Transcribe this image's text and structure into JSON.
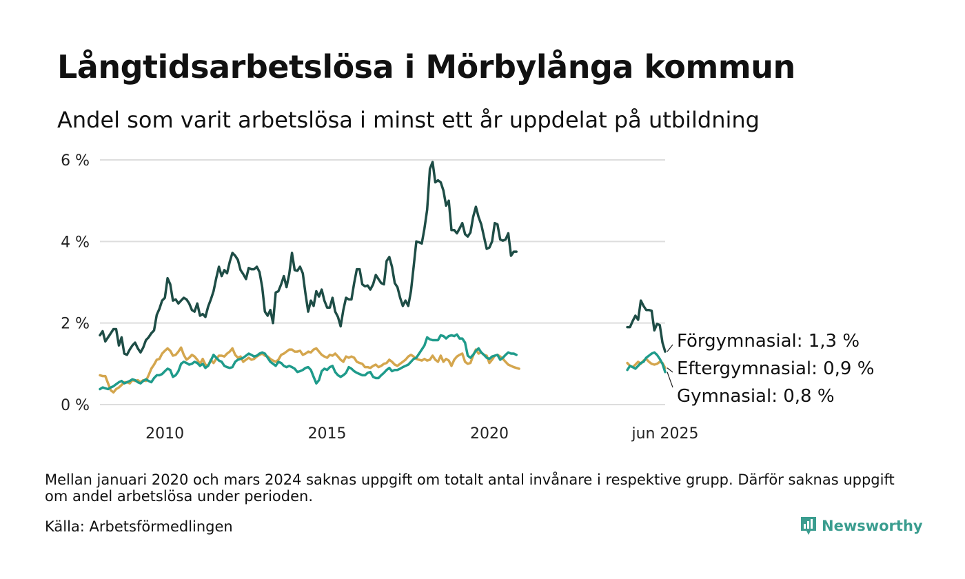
{
  "header": {
    "title": "Långtidsarbetslösa i Mörbylånga kommun",
    "subtitle": "Andel som varit arbetslösa i minst ett år uppdelat på utbildning"
  },
  "footer": {
    "note": "Mellan januari 2020 och mars 2024 saknas uppgift om totalt antal invånare i respektive grupp. Därför saknas uppgift om andel arbetslösa under perioden.",
    "source": "Källa: Arbetsförmedlingen",
    "brand": "Newsworthy"
  },
  "colors": {
    "forgymnasial": "#1e4d46",
    "eftergymnasial": "#d4a64e",
    "gymnasial": "#1f9b8b",
    "grid": "#dddddd",
    "brand": "#3a9d8f"
  },
  "icons": {
    "brand_logo": "bar-chart-speech-icon"
  },
  "chart_data": {
    "type": "line",
    "title": "Långtidsarbetslösa i Mörbylånga kommun",
    "subtitle": "Andel som varit arbetslösa i minst ett år uppdelat på utbildning",
    "xlabel": "",
    "ylabel": "",
    "xlim": [
      "2008-01",
      "2025-06"
    ],
    "ylim": [
      0,
      6
    ],
    "yticks": [
      0,
      2,
      4,
      6
    ],
    "ytick_labels": [
      "0 %",
      "2 %",
      "4 %",
      "6 %"
    ],
    "xticks": [
      "2010-01",
      "2015-01",
      "2020-01",
      "2025-06"
    ],
    "xtick_labels": [
      "2010",
      "2015",
      "2020",
      "jun 2025"
    ],
    "grid": true,
    "legend": "end-of-line labels",
    "series": [
      {
        "name": "Förgymnasial",
        "end_label": "Förgymnasial: 1,3 %",
        "color": "#1e4d46",
        "segments": [
          {
            "start": "2008-01",
            "values": [
              1.7,
              1.8,
              1.55,
              1.65,
              1.75,
              1.85,
              1.85,
              1.45,
              1.65,
              1.25,
              1.22,
              1.35,
              1.45,
              1.52,
              1.38,
              1.28,
              1.4,
              1.58,
              1.65,
              1.75,
              1.82,
              2.2,
              2.35,
              2.55,
              2.62,
              3.1,
              2.95,
              2.55,
              2.58,
              2.48,
              2.55,
              2.62,
              2.58,
              2.48,
              2.32,
              2.28,
              2.48,
              2.18,
              2.22,
              2.15,
              2.4,
              2.58,
              2.78,
              3.1,
              3.38,
              3.15,
              3.3,
              3.22,
              3.5,
              3.72,
              3.65,
              3.55,
              3.3,
              3.2,
              3.08,
              3.35,
              3.32,
              3.32,
              3.38,
              3.25,
              2.88,
              2.28,
              2.18,
              2.32,
              2.0,
              2.75,
              2.78,
              2.95,
              3.15,
              2.88,
              3.2,
              3.72,
              3.3,
              3.28,
              3.38,
              3.22,
              2.72,
              2.28,
              2.55,
              2.42,
              2.78,
              2.65,
              2.82,
              2.55,
              2.38,
              2.38,
              2.62,
              2.28,
              2.15,
              1.92,
              2.32,
              2.62,
              2.58,
              2.58,
              2.98,
              3.32,
              3.32,
              2.95,
              2.9,
              2.92,
              2.82,
              2.95,
              3.18,
              3.08,
              2.98,
              2.95,
              3.52,
              3.62,
              3.38,
              2.98,
              2.88,
              2.62,
              2.42,
              2.55,
              2.42,
              2.78,
              3.38,
              4.0,
              3.98,
              3.95,
              4.32,
              4.78,
              5.78,
              5.95,
              5.45,
              5.5,
              5.45,
              5.25,
              4.88,
              5.0,
              4.28,
              4.28,
              4.2,
              4.32,
              4.45,
              4.18,
              4.12,
              4.22,
              4.6,
              4.85,
              4.6,
              4.42,
              4.12,
              3.82,
              3.85,
              4.0,
              4.45,
              4.42,
              4.05,
              4.02,
              4.05,
              4.2,
              3.65,
              3.75,
              3.75
            ]
          },
          {
            "start": "2024-04",
            "values": [
              1.9,
              1.9,
              2.05,
              2.18,
              2.08,
              2.55,
              2.42,
              2.32,
              2.32,
              2.3,
              1.82,
              1.98,
              1.95,
              1.52,
              1.3
            ]
          }
        ]
      },
      {
        "name": "Eftergymnasial",
        "end_label": "Eftergymnasial: 0,9 %",
        "color": "#d4a64e",
        "segments": [
          {
            "start": "2008-01",
            "values": [
              0.72,
              0.7,
              0.7,
              0.52,
              0.35,
              0.3,
              0.38,
              0.42,
              0.48,
              0.55,
              0.55,
              0.52,
              0.6,
              0.58,
              0.6,
              0.55,
              0.6,
              0.58,
              0.72,
              0.88,
              0.98,
              1.1,
              1.12,
              1.25,
              1.32,
              1.38,
              1.32,
              1.2,
              1.22,
              1.3,
              1.4,
              1.22,
              1.1,
              1.15,
              1.22,
              1.18,
              1.1,
              1.0,
              1.12,
              0.98,
              0.95,
              1.1,
              1.02,
              1.12,
              1.2,
              1.2,
              1.18,
              1.25,
              1.3,
              1.38,
              1.22,
              1.15,
              1.18,
              1.05,
              1.1,
              1.15,
              1.1,
              1.12,
              1.18,
              1.22,
              1.25,
              1.2,
              1.18,
              1.12,
              1.08,
              1.05,
              1.1,
              1.22,
              1.25,
              1.3,
              1.35,
              1.35,
              1.3,
              1.3,
              1.32,
              1.22,
              1.25,
              1.3,
              1.28,
              1.35,
              1.38,
              1.3,
              1.22,
              1.18,
              1.15,
              1.22,
              1.2,
              1.25,
              1.18,
              1.1,
              1.05,
              1.18,
              1.15,
              1.18,
              1.15,
              1.05,
              1.02,
              1.0,
              0.92,
              0.92,
              0.9,
              0.95,
              0.98,
              0.92,
              0.95,
              1.0,
              1.02,
              1.1,
              1.05,
              0.98,
              0.95,
              1.0,
              1.05,
              1.1,
              1.18,
              1.22,
              1.18,
              1.12,
              1.1,
              1.08,
              1.12,
              1.08,
              1.1,
              1.2,
              1.1,
              1.05,
              1.2,
              1.05,
              1.12,
              1.08,
              0.95,
              1.1,
              1.18,
              1.22,
              1.25,
              1.05,
              1.0,
              1.02,
              1.2,
              1.35,
              1.25,
              1.28,
              1.22,
              1.2,
              1.02,
              1.1,
              1.2,
              1.22,
              1.18,
              1.12,
              1.05,
              0.98,
              0.95,
              0.92,
              0.9,
              0.88
            ]
          },
          {
            "start": "2024-04",
            "values": [
              1.02,
              0.95,
              0.92,
              0.98,
              1.05,
              1.0,
              1.08,
              1.12,
              1.05,
              1.0,
              0.98,
              1.0,
              1.05,
              1.02,
              0.9
            ]
          }
        ]
      },
      {
        "name": "Gymnasial",
        "end_label": "Gymnasial: 0,8 %",
        "color": "#1f9b8b",
        "segments": [
          {
            "start": "2008-01",
            "values": [
              0.38,
              0.42,
              0.4,
              0.38,
              0.42,
              0.45,
              0.5,
              0.55,
              0.58,
              0.52,
              0.55,
              0.58,
              0.62,
              0.6,
              0.55,
              0.52,
              0.58,
              0.62,
              0.58,
              0.55,
              0.65,
              0.72,
              0.72,
              0.75,
              0.82,
              0.88,
              0.85,
              0.68,
              0.72,
              0.82,
              1.0,
              1.05,
              1.02,
              0.98,
              1.0,
              1.05,
              1.02,
              0.95,
              1.0,
              0.9,
              0.95,
              1.08,
              1.22,
              1.15,
              1.08,
              1.05,
              0.95,
              0.92,
              0.9,
              0.92,
              1.05,
              1.1,
              1.12,
              1.15,
              1.2,
              1.25,
              1.22,
              1.18,
              1.2,
              1.25,
              1.28,
              1.25,
              1.15,
              1.05,
              1.0,
              0.95,
              1.05,
              1.02,
              0.95,
              0.92,
              0.95,
              0.92,
              0.88,
              0.8,
              0.82,
              0.85,
              0.9,
              0.92,
              0.85,
              0.68,
              0.52,
              0.6,
              0.82,
              0.88,
              0.85,
              0.92,
              0.95,
              0.8,
              0.72,
              0.68,
              0.72,
              0.78,
              0.92,
              0.88,
              0.82,
              0.78,
              0.75,
              0.72,
              0.72,
              0.78,
              0.8,
              0.68,
              0.65,
              0.65,
              0.72,
              0.78,
              0.85,
              0.9,
              0.82,
              0.85,
              0.85,
              0.88,
              0.92,
              0.95,
              0.98,
              1.05,
              1.12,
              1.15,
              1.25,
              1.35,
              1.45,
              1.65,
              1.6,
              1.58,
              1.58,
              1.58,
              1.7,
              1.68,
              1.62,
              1.68,
              1.7,
              1.68,
              1.72,
              1.62,
              1.62,
              1.52,
              1.2,
              1.15,
              1.22,
              1.32,
              1.38,
              1.28,
              1.22,
              1.15,
              1.12,
              1.18,
              1.2,
              1.22,
              1.1,
              1.15,
              1.22,
              1.28,
              1.25,
              1.25,
              1.22
            ]
          },
          {
            "start": "2024-04",
            "values": [
              0.85,
              0.95,
              0.92,
              0.88,
              0.95,
              1.02,
              1.05,
              1.15,
              1.2,
              1.25,
              1.28,
              1.22,
              1.12,
              1.0,
              0.8
            ]
          }
        ]
      }
    ]
  }
}
